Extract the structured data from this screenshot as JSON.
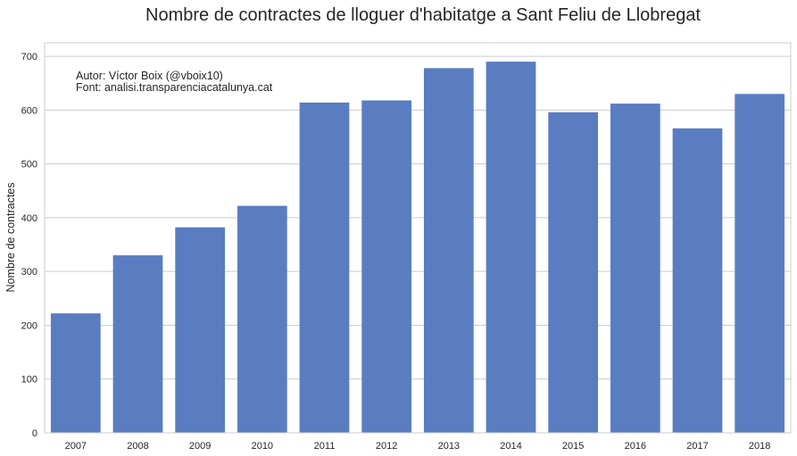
{
  "chart_data": {
    "type": "bar",
    "title": "Nombre de contractes de lloguer d'habitatge a Sant Feliu de Llobregat",
    "xlabel": "",
    "ylabel": "Nombre de contractes",
    "categories": [
      "2007",
      "2008",
      "2009",
      "2010",
      "2011",
      "2012",
      "2013",
      "2014",
      "2015",
      "2016",
      "2017",
      "2018"
    ],
    "values": [
      222,
      330,
      382,
      422,
      614,
      618,
      678,
      690,
      596,
      612,
      566,
      630
    ],
    "ylim": [
      0,
      725
    ],
    "yticks": [
      0,
      100,
      200,
      300,
      400,
      500,
      600,
      700
    ],
    "grid": true,
    "bar_color": "#5a7dc1",
    "annotation": [
      "Autor: Víctor Boix (@vboix10)",
      "Font: analisi.transparenciacatalunya.cat"
    ]
  }
}
